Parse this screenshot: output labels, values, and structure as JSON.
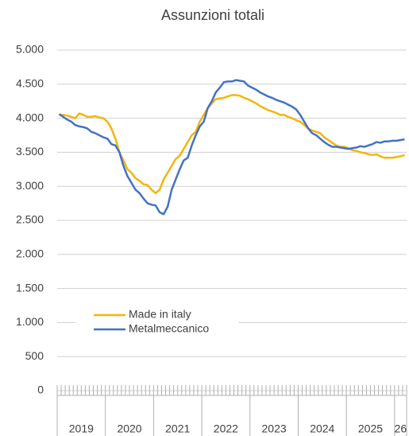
{
  "chart_data": {
    "type": "line",
    "title": "Assunzioni totali",
    "year_labels": [
      "2019",
      "2020",
      "2021",
      "2022",
      "2023",
      "2024",
      "2025",
      "26"
    ],
    "categories": [
      null,
      null,
      null,
      null,
      null,
      null,
      null,
      null,
      null,
      null,
      null,
      null,
      null,
      null,
      null,
      null,
      null,
      null,
      null,
      null,
      null,
      null,
      null,
      null,
      null,
      null,
      null,
      null,
      null,
      null,
      null,
      null,
      null,
      null,
      null,
      null,
      null,
      null,
      null,
      null,
      null,
      null,
      null,
      null,
      null,
      null,
      null,
      null,
      null,
      null,
      null,
      null,
      null,
      null,
      null,
      null,
      null,
      null,
      null,
      null,
      null,
      null,
      null,
      null,
      null,
      null,
      null,
      null,
      null,
      null,
      null,
      null,
      null,
      null,
      null,
      null,
      null,
      null,
      null,
      null,
      null,
      null,
      null,
      null,
      null,
      null,
      null
    ],
    "series": [
      {
        "name": "Made in italy",
        "color": "#f5b50a",
        "values": [
          4050,
          4050,
          4040,
          4020,
          4000,
          4070,
          4050,
          4020,
          4020,
          4030,
          4010,
          4000,
          3950,
          3850,
          3700,
          3500,
          3380,
          3250,
          3200,
          3120,
          3080,
          3030,
          3020,
          2950,
          2900,
          2950,
          3100,
          3200,
          3300,
          3400,
          3450,
          3550,
          3650,
          3750,
          3800,
          3950,
          4050,
          4150,
          4220,
          4280,
          4290,
          4300,
          4320,
          4340,
          4340,
          4330,
          4300,
          4280,
          4250,
          4220,
          4180,
          4150,
          4120,
          4100,
          4080,
          4050,
          4050,
          4020,
          4000,
          3970,
          3950,
          3900,
          3850,
          3820,
          3800,
          3780,
          3720,
          3680,
          3640,
          3600,
          3580,
          3580,
          3560,
          3530,
          3520,
          3500,
          3490,
          3470,
          3460,
          3470,
          3440,
          3420,
          3420,
          3420,
          3430,
          3440,
          3460
        ]
      },
      {
        "name": "Metalmeccanico",
        "color": "#4472c4",
        "values": [
          4060,
          4020,
          3980,
          3950,
          3900,
          3880,
          3870,
          3850,
          3800,
          3780,
          3750,
          3720,
          3700,
          3620,
          3600,
          3500,
          3300,
          3150,
          3050,
          2950,
          2900,
          2820,
          2750,
          2730,
          2720,
          2620,
          2590,
          2700,
          2950,
          3100,
          3250,
          3380,
          3420,
          3600,
          3750,
          3880,
          3950,
          4150,
          4250,
          4380,
          4450,
          4530,
          4540,
          4540,
          4560,
          4550,
          4540,
          4480,
          4450,
          4420,
          4380,
          4350,
          4320,
          4300,
          4270,
          4250,
          4230,
          4200,
          4170,
          4130,
          4050,
          3950,
          3850,
          3780,
          3750,
          3700,
          3650,
          3610,
          3580,
          3580,
          3570,
          3560,
          3550,
          3560,
          3570,
          3590,
          3580,
          3600,
          3620,
          3650,
          3640,
          3660,
          3660,
          3670,
          3670,
          3680,
          3690
        ]
      }
    ],
    "ylim": [
      0,
      5000
    ],
    "yticks": [
      0,
      500,
      {
        "value": 1000,
        "label": "1.000"
      },
      {
        "value": 1500,
        "label": "1.500"
      },
      {
        "value": 2000,
        "label": "2.000"
      },
      {
        "value": 2500,
        "label": "2.500"
      },
      {
        "value": 3000,
        "label": "3.000"
      },
      {
        "value": 3500,
        "label": "3.500"
      },
      {
        "value": 4000,
        "label": "4.000"
      },
      {
        "value": 4500,
        "label": "4.500"
      },
      {
        "value": 5000,
        "label": "5.000"
      }
    ],
    "grid": true
  }
}
